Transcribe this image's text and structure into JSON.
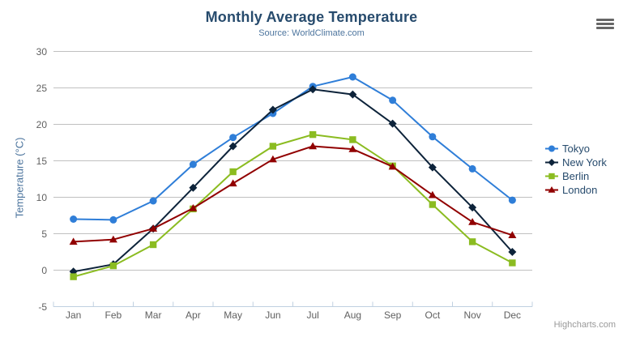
{
  "header": {
    "title": "Monthly Average Temperature",
    "subtitle": "Source: WorldClimate.com"
  },
  "credits": {
    "label": "Highcharts.com"
  },
  "context_menu": {
    "icon": "hamburger-menu"
  },
  "chart_data": {
    "type": "line",
    "title": "Monthly Average Temperature",
    "subtitle": "Source: WorldClimate.com",
    "xlabel": "",
    "ylabel": "Temperature (°C)",
    "ylim": [
      -5,
      30
    ],
    "ytick_interval": 5,
    "grid": true,
    "legend_position": "right",
    "categories": [
      "Jan",
      "Feb",
      "Mar",
      "Apr",
      "May",
      "Jun",
      "Jul",
      "Aug",
      "Sep",
      "Oct",
      "Nov",
      "Dec"
    ],
    "series": [
      {
        "name": "Tokyo",
        "color": "#2f7ed8",
        "marker": "circle",
        "values": [
          7.0,
          6.9,
          9.5,
          14.5,
          18.2,
          21.5,
          25.2,
          26.5,
          23.3,
          18.3,
          13.9,
          9.6
        ]
      },
      {
        "name": "New York",
        "color": "#0d233a",
        "marker": "diamond",
        "values": [
          -0.2,
          0.8,
          5.7,
          11.3,
          17.0,
          22.0,
          24.8,
          24.1,
          20.1,
          14.1,
          8.6,
          2.5
        ]
      },
      {
        "name": "Berlin",
        "color": "#8bbc21",
        "marker": "square",
        "values": [
          -0.9,
          0.6,
          3.5,
          8.4,
          13.5,
          17.0,
          18.6,
          17.9,
          14.3,
          9.0,
          3.9,
          1.0
        ]
      },
      {
        "name": "London",
        "color": "#910000",
        "marker": "triangle",
        "values": [
          3.9,
          4.2,
          5.7,
          8.5,
          11.9,
          15.2,
          17.0,
          16.6,
          14.2,
          10.3,
          6.6,
          4.8
        ]
      }
    ],
    "styles": {
      "grid_color": "#C0C0C0",
      "axis_line_color": "#C0D0E0",
      "axis_label_color": "#606060",
      "title_color": "#274b6d",
      "subtitle_color": "#4d759e",
      "axis_title_color": "#4d759e",
      "legend_text_color": "#274b6d",
      "credits_color": "#999999",
      "menu_icon_color": "#666666"
    }
  }
}
